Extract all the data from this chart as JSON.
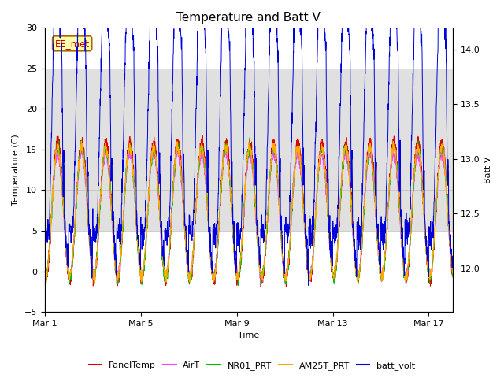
{
  "title": "Temperature and Batt V",
  "xlabel": "Time",
  "ylabel_left": "Temperature (C)",
  "ylabel_right": "Batt V",
  "annotation": "EE_met",
  "ylim_left": [
    -5,
    30
  ],
  "ylim_right": [
    11.6,
    14.2
  ],
  "n_days": 17,
  "xtick_labels": [
    "Mar 1",
    "Mar 5",
    "Mar 9",
    "Mar 13",
    "Mar 17"
  ],
  "xtick_positions": [
    0,
    4,
    8,
    12,
    16
  ],
  "bg_band_low": 5,
  "bg_band_high": 25,
  "bg_color": "#e0e0e0",
  "colors": {
    "PanelTemp": "#dd0000",
    "AirT": "#ff44ff",
    "NR01_PRT": "#00bb00",
    "AM25T_PRT": "#ffaa00",
    "batt_volt": "#0000dd"
  },
  "title_fontsize": 11,
  "axis_fontsize": 8,
  "tick_fontsize": 8,
  "grid_color": "#bbbbbb",
  "grid_linewidth": 0.5,
  "annotation_bg": "#ffffaa",
  "annotation_border": "#aa6600",
  "annotation_text_color": "#cc0000",
  "line_width": 0.7
}
